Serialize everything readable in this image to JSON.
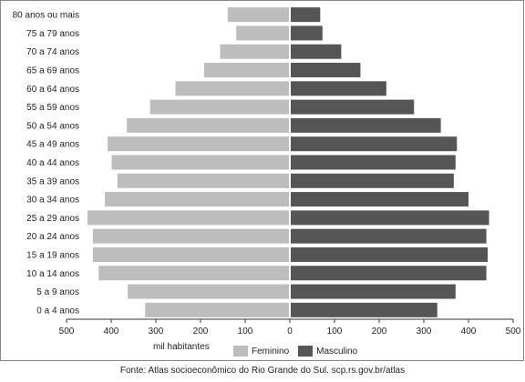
{
  "chart_data": {
    "type": "bar",
    "orientation": "horizontal",
    "subtype": "population-pyramid",
    "categories": [
      "80 anos ou mais",
      "75 a 79 anos",
      "70 a 74 anos",
      "65 a 69 anos",
      "60 a 64 anos",
      "55 a 59 anos",
      "50 a 54 anos",
      "45 a 49 anos",
      "40 a 44 anos",
      "35 a 39 anos",
      "30 a 34 anos",
      "25 a 29 anos",
      "20 a 24 anos",
      "15 a 19 anos",
      "10 a 14 anos",
      "5 a 9 anos",
      "0 a 4 anos"
    ],
    "series": [
      {
        "name": "Feminino",
        "color": "#bdbdbd",
        "side": "left",
        "values": [
          137,
          118,
          154,
          190,
          254,
          311,
          363,
          406,
          397,
          384,
          412,
          451,
          439,
          439,
          426,
          361,
          322
        ]
      },
      {
        "name": "Masculino",
        "color": "#555555",
        "side": "right",
        "values": [
          66,
          71,
          113,
          156,
          214,
          276,
          336,
          372,
          369,
          365,
          398,
          444,
          438,
          441,
          438,
          369,
          328
        ]
      }
    ],
    "xlim": [
      -500,
      500
    ],
    "xticks": [
      -500,
      -400,
      -300,
      -200,
      -100,
      0,
      100,
      200,
      300,
      400,
      500
    ],
    "xtick_labels": [
      "500",
      "400",
      "300",
      "200",
      "100",
      "0",
      "100",
      "200",
      "300",
      "400",
      "500"
    ],
    "xlabel": "mil habitantes",
    "legend": "bottom",
    "grid": false
  },
  "source": "Fonte: Atlas socioeconômico do Rio Grande do Sul. scp.rs.gov.br/atlas"
}
